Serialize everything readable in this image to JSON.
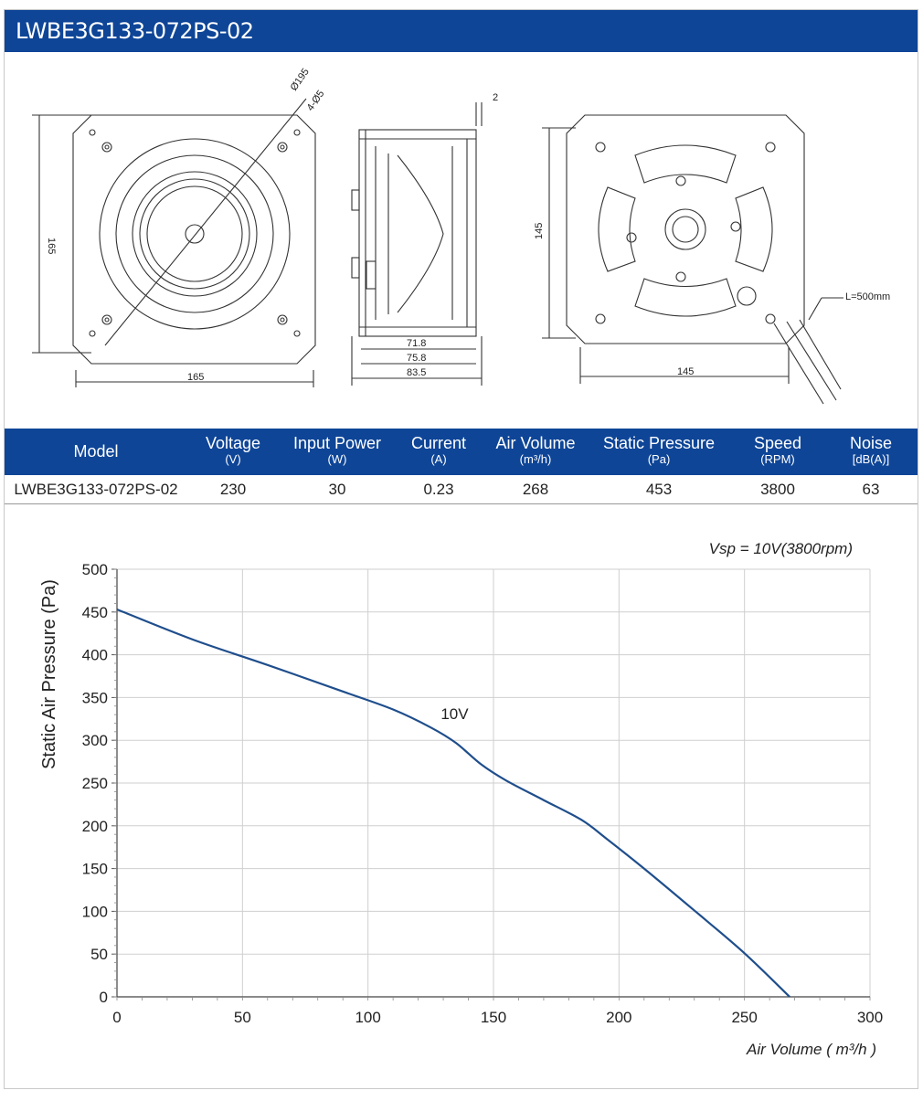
{
  "header": {
    "title": "LWBE3G133-072PS-02"
  },
  "drawing": {
    "front_labels": [
      "165",
      "165",
      "Ø195",
      "4-Ø5"
    ],
    "side_labels": [
      "2",
      "71.8",
      "75.8",
      "83.5"
    ],
    "rear_labels": [
      "145",
      "145",
      "L=500mm"
    ]
  },
  "spec_table": {
    "columns": [
      {
        "label": "Model",
        "unit": ""
      },
      {
        "label": "Voltage",
        "unit": "(V)"
      },
      {
        "label": "Input Power",
        "unit": "(W)"
      },
      {
        "label": "Current",
        "unit": "(A)"
      },
      {
        "label": "Air Volume",
        "unit": "(m³/h)"
      },
      {
        "label": "Static Pressure",
        "unit": "(Pa)"
      },
      {
        "label": "Speed",
        "unit": "(RPM)"
      },
      {
        "label": "Noise",
        "unit": "[dB(A)]"
      }
    ],
    "row": [
      "LWBE3G133-072PS-02",
      "230",
      "30",
      "0.23",
      "268",
      "453",
      "3800",
      "63"
    ]
  },
  "chart_data": {
    "type": "line",
    "title": "",
    "annotation": "Vsp = 10V(3800rpm)",
    "xlabel": "Air Volume ( m³/h )",
    "ylabel": "Static Air Pressure  (Pa)",
    "xlim": [
      0,
      300
    ],
    "ylim": [
      0,
      500
    ],
    "xticks": [
      0,
      50,
      100,
      150,
      200,
      250,
      300
    ],
    "yticks": [
      0,
      50,
      100,
      150,
      200,
      250,
      300,
      350,
      400,
      450,
      500
    ],
    "grid": true,
    "series": [
      {
        "name": "10V",
        "color": "#1f4e8c",
        "x": [
          0,
          30,
          60,
          90,
          110,
          125,
          135,
          145,
          155,
          170,
          185,
          195,
          210,
          230,
          250,
          268
        ],
        "y": [
          453,
          418,
          388,
          357,
          336,
          315,
          297,
          272,
          253,
          230,
          207,
          185,
          150,
          101,
          51,
          0
        ]
      }
    ]
  }
}
